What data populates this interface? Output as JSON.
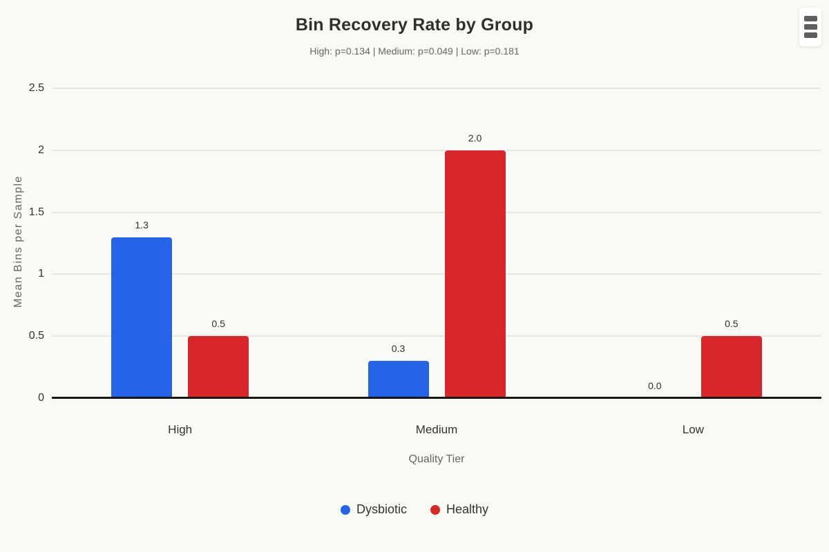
{
  "chart_data": {
    "type": "bar",
    "title": "Bin Recovery Rate by Group",
    "subtitle": "High: p=0.134 | Medium: p=0.049 | Low: p=0.181",
    "xlabel": "Quality Tier",
    "ylabel": "Mean Bins per Sample",
    "categories": [
      "High",
      "Medium",
      "Low"
    ],
    "series": [
      {
        "name": "Dysbiotic",
        "color": "#2563e8",
        "values": [
          1.3,
          0.3,
          0.0
        ],
        "labels": [
          "1.3",
          "0.3",
          "0.0"
        ]
      },
      {
        "name": "Healthy",
        "color": "#d8262b",
        "values": [
          0.5,
          2.0,
          0.5
        ],
        "labels": [
          "0.5",
          "2.0",
          "0.5"
        ]
      }
    ],
    "ylim": [
      0,
      2.5
    ],
    "yticks": [
      0,
      0.5,
      1,
      1.5,
      2,
      2.5
    ],
    "ytick_labels": [
      "0",
      "0.5",
      "1",
      "1.5",
      "2",
      "2.5"
    ],
    "grid": true,
    "legend_position": "bottom"
  },
  "menu": {
    "icon": "hamburger-menu-icon"
  },
  "colors": {
    "background": "#f8faf4",
    "gridline": "#e7e7e7",
    "axis_line": "#161616",
    "title_text": "#2f2f2f",
    "muted_text": "#666666",
    "tick_text": "#333333",
    "dysbiotic_blue": "#2563e8",
    "healthy_red": "#d8262b"
  }
}
